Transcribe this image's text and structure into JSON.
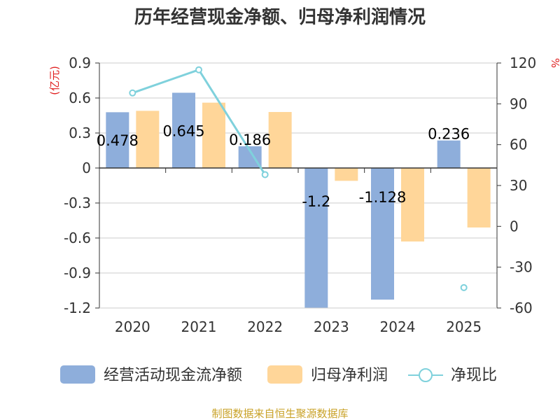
{
  "chart_data": {
    "type": "bar",
    "title": "历年经营现金净额、归母净利润情况",
    "categories": [
      "2020",
      "2021",
      "2022",
      "2023",
      "2024",
      "2025"
    ],
    "series": [
      {
        "name": "经营活动现金流净额",
        "axis": "left",
        "color": "#8eaedb",
        "values": [
          0.478,
          0.645,
          0.186,
          -1.2,
          -1.128,
          0.236
        ],
        "labels": [
          "0.478",
          "0.645",
          "0.186",
          "-1.2",
          "-1.128",
          "0.236"
        ]
      },
      {
        "name": "归母净利润",
        "axis": "left",
        "color": "#ffd699",
        "values": [
          0.49,
          0.56,
          0.48,
          -0.11,
          -0.63,
          -0.51
        ]
      },
      {
        "name": "净现比",
        "axis": "right",
        "type": "line",
        "color": "#7fd1dc",
        "values": [
          98,
          115,
          38,
          null,
          null,
          -45
        ]
      }
    ],
    "left_axis": {
      "unit": "(亿元)",
      "ylim": [
        -1.2,
        0.9
      ],
      "ticks": [
        0.9,
        0.6,
        0.3,
        0,
        -0.3,
        -0.6,
        -0.9,
        -1.2
      ],
      "tick_labels": [
        "0.9",
        "0.6",
        "0.3",
        "0",
        "-0.3",
        "-0.6",
        "-0.9",
        "-1.2"
      ]
    },
    "right_axis": {
      "unit": "%",
      "ylim": [
        -60,
        120
      ],
      "ticks": [
        120,
        90,
        60,
        30,
        0,
        -30,
        -60
      ],
      "tick_labels": [
        "120",
        "90",
        "60",
        "30",
        "0",
        "-30",
        "-60"
      ]
    },
    "grid": true,
    "legend_position": "bottom"
  },
  "source": "制图数据来自恒生聚源数据库"
}
